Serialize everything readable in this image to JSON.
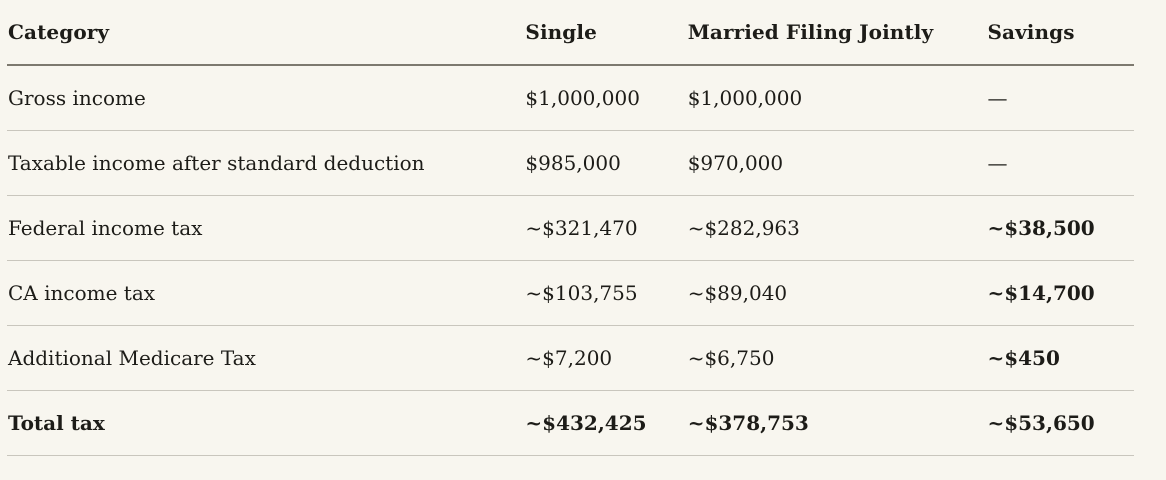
{
  "table": {
    "title": "tax-filing-status-comparison",
    "columns": {
      "category": "Category",
      "single": "Single",
      "married": "Married Filing Jointly",
      "savings": "Savings"
    },
    "rows": [
      {
        "category": "Gross income",
        "single": "$1,000,000",
        "married": "$1,000,000",
        "savings": "—"
      },
      {
        "category": "Taxable income after standard deduction",
        "single": "$985,000",
        "married": "$970,000",
        "savings": "—"
      },
      {
        "category": "Federal income tax",
        "single": "~$321,470",
        "married": "~$282,963",
        "savings": "~$38,500"
      },
      {
        "category": "CA income tax",
        "single": "~$103,755",
        "married": "~$89,040",
        "savings": "~$14,700"
      },
      {
        "category": "Additional Medicare Tax",
        "single": "~$7,200",
        "married": "~$6,750",
        "savings": "~$450"
      },
      {
        "category": "Total tax",
        "single": "~$432,425",
        "married": "~$378,753",
        "savings": "~$53,650"
      }
    ],
    "colors": {
      "background": "#f8f6ef",
      "text": "#1d1c18",
      "header_divider": "#7d796f",
      "row_divider": "#c9c6bd"
    }
  }
}
